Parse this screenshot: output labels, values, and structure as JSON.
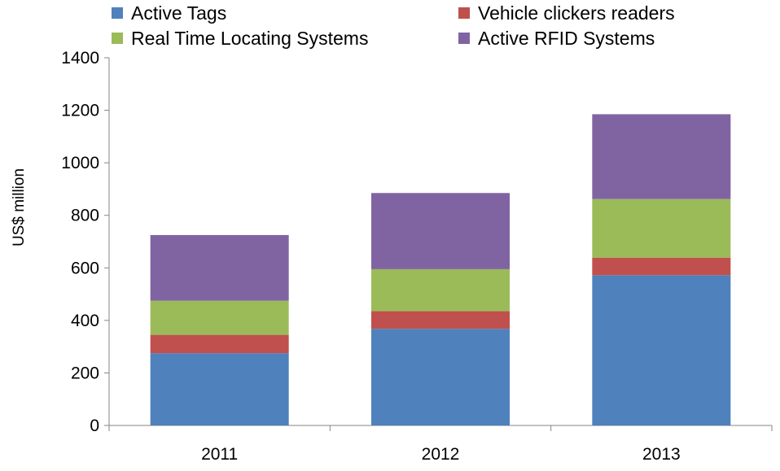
{
  "chart_data": {
    "type": "bar",
    "stacked": true,
    "categories": [
      "2011",
      "2012",
      "2013"
    ],
    "series": [
      {
        "name": "Active Tags",
        "color": "#4F81BD",
        "values": [
          275,
          368,
          572
        ]
      },
      {
        "name": "Vehicle clickers readers",
        "color": "#C0504D",
        "values": [
          70,
          67,
          67
        ]
      },
      {
        "name": "Real Time Locating Systems",
        "color": "#9BBB59",
        "values": [
          130,
          160,
          223
        ]
      },
      {
        "name": "Active RFID Systems",
        "color": "#8064A2",
        "values": [
          250,
          290,
          323
        ]
      }
    ],
    "title": "",
    "xlabel": "",
    "ylabel": "US$ million",
    "ylim": [
      0,
      1400
    ],
    "yticks": [
      0,
      200,
      400,
      600,
      800,
      1000,
      1200,
      1400
    ],
    "grid": false,
    "legend_position": "top"
  }
}
